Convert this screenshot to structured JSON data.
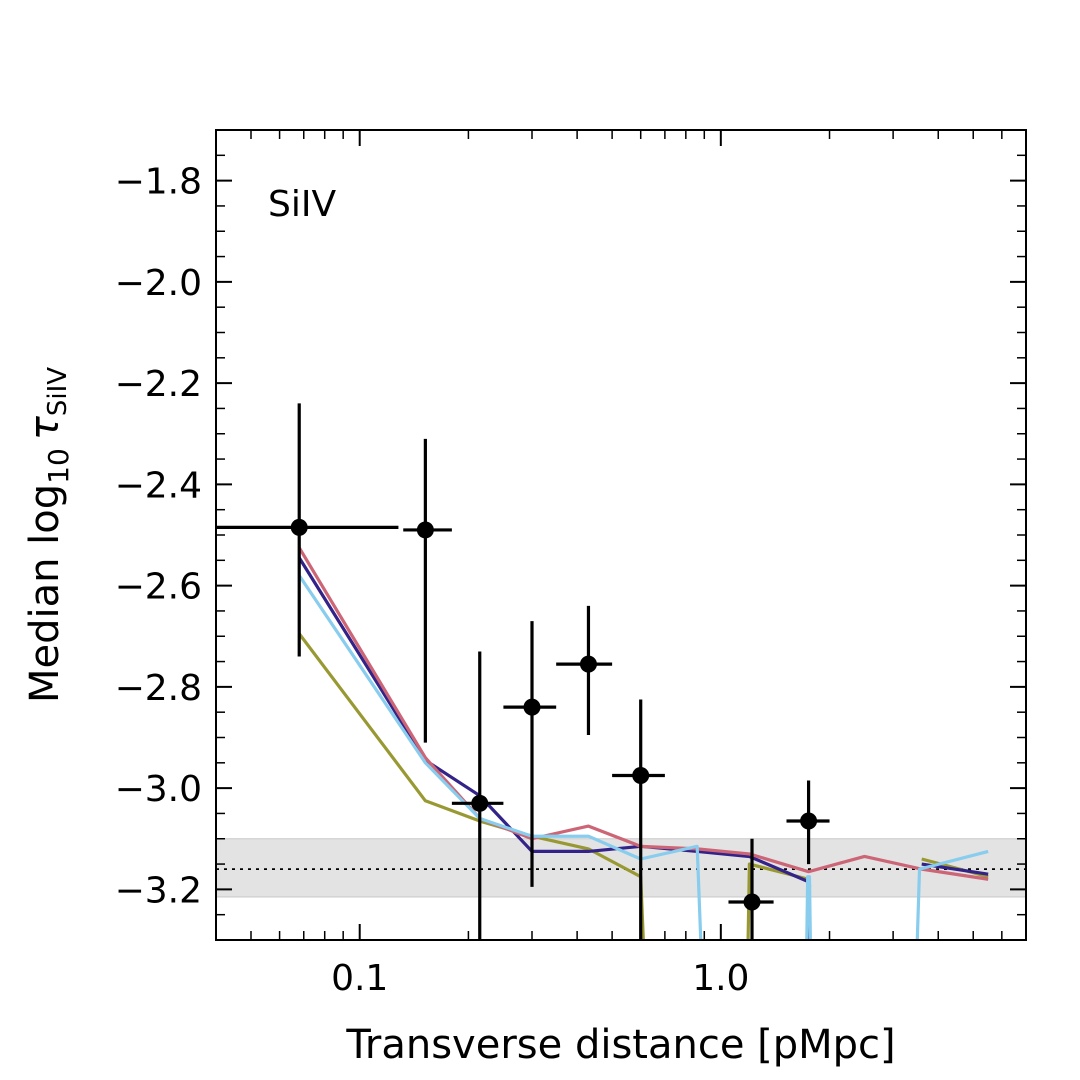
{
  "chart_data": {
    "type": "line",
    "panel_label": "SiIV",
    "xlabel": "Transverse distance [pMpc]",
    "ylabel_prefix": "Median log",
    "ylabel_base": "10",
    "ylabel_tau": "τ",
    "ylabel_sub": "SiIV",
    "xscale": "log",
    "xlim": [
      0.04,
      7.0
    ],
    "ylim": [
      -3.3,
      -1.7
    ],
    "x_ticks": [
      {
        "value": 0.1,
        "label": "0.1"
      },
      {
        "value": 1.0,
        "label": "1.0"
      }
    ],
    "y_ticks": [
      {
        "value": -1.8,
        "label": "−1.8"
      },
      {
        "value": -2.0,
        "label": "−2.0"
      },
      {
        "value": -2.2,
        "label": "−2.2"
      },
      {
        "value": -2.4,
        "label": "−2.4"
      },
      {
        "value": -2.6,
        "label": "−2.6"
      },
      {
        "value": -2.8,
        "label": "−2.8"
      },
      {
        "value": -3.0,
        "label": "−3.0"
      },
      {
        "value": -3.2,
        "label": "−3.2"
      }
    ],
    "background_band": {
      "median": -3.16,
      "low": -3.215,
      "high": -3.1,
      "color": "#e3e3e3"
    },
    "observed": {
      "color": "#000000",
      "points": [
        {
          "x": 0.068,
          "y": -2.485,
          "xlo": 0.035,
          "xhi": 0.128,
          "ylo": -2.74,
          "yhi": -2.24
        },
        {
          "x": 0.152,
          "y": -2.49,
          "xlo": 0.132,
          "xhi": 0.18,
          "ylo": -2.91,
          "yhi": -2.31
        },
        {
          "x": 0.215,
          "y": -3.03,
          "xlo": 0.18,
          "xhi": 0.25,
          "ylo": -3.3,
          "yhi": -2.73
        },
        {
          "x": 0.3,
          "y": -2.84,
          "xlo": 0.25,
          "xhi": 0.35,
          "ylo": -3.195,
          "yhi": -2.67
        },
        {
          "x": 0.43,
          "y": -2.755,
          "xlo": 0.35,
          "xhi": 0.5,
          "ylo": -2.895,
          "yhi": -2.64
        },
        {
          "x": 0.6,
          "y": -2.975,
          "xlo": 0.5,
          "xhi": 0.7,
          "ylo": -3.3,
          "yhi": -2.825
        },
        {
          "x": 1.22,
          "y": -3.225,
          "xlo": 1.05,
          "xhi": 1.4,
          "ylo": -3.3,
          "yhi": -3.1
        },
        {
          "x": 1.75,
          "y": -3.065,
          "xlo": 1.52,
          "xhi": 2.0,
          "ylo": -3.15,
          "yhi": -2.985
        }
      ]
    },
    "series": [
      {
        "name": "olive",
        "color": "#999933",
        "x": [
          0.068,
          0.152,
          0.215,
          0.3,
          0.43,
          0.6,
          0.61,
          null,
          1.19,
          1.2,
          1.75,
          null,
          3.6,
          5.5
        ],
        "y": [
          -2.695,
          -3.025,
          -3.065,
          -3.095,
          -3.12,
          -3.175,
          -3.3,
          null,
          -3.3,
          -3.15,
          -3.18,
          null,
          -3.14,
          -3.175
        ]
      },
      {
        "name": "purple",
        "color": "#332288",
        "x": [
          0.068,
          0.152,
          0.215,
          0.3,
          0.43,
          0.6,
          0.86,
          1.2,
          1.75,
          null,
          3.6,
          5.5
        ],
        "y": [
          -2.545,
          -2.945,
          -3.015,
          -3.125,
          -3.125,
          -3.115,
          -3.125,
          -3.135,
          -3.185,
          null,
          -3.15,
          -3.17
        ],
        "clip_down_at": [
          [
            1.75,
            1.76
          ]
        ]
      },
      {
        "name": "rose",
        "color": "#cc6677",
        "x": [
          0.068,
          0.152,
          0.215,
          0.3,
          0.43,
          0.6,
          0.86,
          1.2,
          1.75,
          2.5,
          3.6,
          5.5
        ],
        "y": [
          -2.525,
          -2.94,
          -3.06,
          -3.1,
          -3.075,
          -3.115,
          -3.12,
          -3.13,
          -3.165,
          -3.135,
          -3.16,
          -3.18
        ]
      },
      {
        "name": "sky",
        "color": "#88ccee",
        "x": [
          0.068,
          0.152,
          0.215,
          0.3,
          0.43,
          0.6,
          0.86,
          0.88,
          null,
          1.73,
          1.74,
          1.76,
          1.77,
          null,
          3.5,
          3.55,
          5.5
        ],
        "y": [
          -2.58,
          -2.95,
          -3.06,
          -3.095,
          -3.095,
          -3.14,
          -3.115,
          -3.3,
          null,
          -3.3,
          -3.175,
          -3.175,
          -3.3,
          null,
          -3.3,
          -3.16,
          -3.125
        ]
      }
    ]
  }
}
